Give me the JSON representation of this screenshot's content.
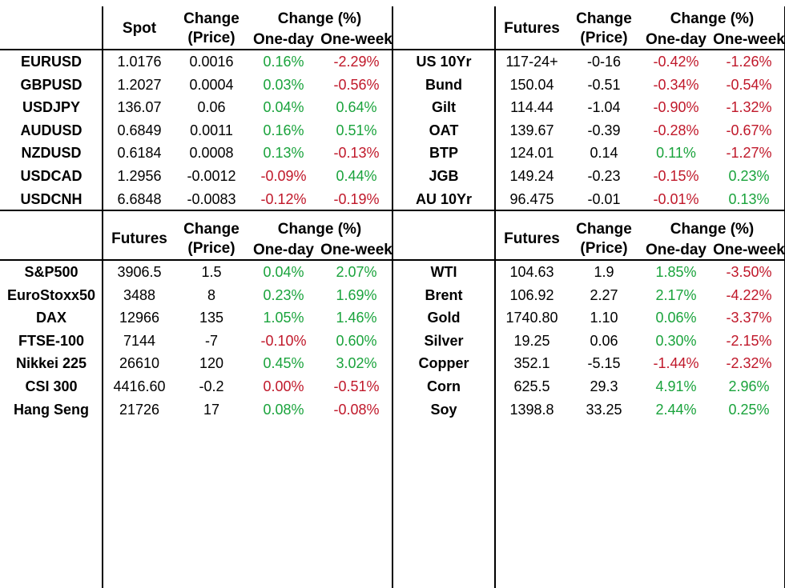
{
  "colors": {
    "positive": "#1aa33c",
    "negative": "#c0182a"
  },
  "top_left": {
    "header": {
      "first": "Spot",
      "change_price": [
        "Change",
        "(Price)"
      ],
      "change_pct": "Change (%)",
      "one_day": "One-day",
      "one_week": "One-week"
    },
    "rows": [
      {
        "label": "EURUSD",
        "value": "1.0176",
        "change": "0.0016",
        "day": "0.16%",
        "week": "-2.29%"
      },
      {
        "label": "GBPUSD",
        "value": "1.2027",
        "change": "0.0004",
        "day": "0.03%",
        "week": "-0.56%"
      },
      {
        "label": "USDJPY",
        "value": "136.07",
        "change": "0.06",
        "day": "0.04%",
        "week": "0.64%"
      },
      {
        "label": "AUDUSD",
        "value": "0.6849",
        "change": "0.0011",
        "day": "0.16%",
        "week": "0.51%"
      },
      {
        "label": "NZDUSD",
        "value": "0.6184",
        "change": "0.0008",
        "day": "0.13%",
        "week": "-0.13%"
      },
      {
        "label": "USDCAD",
        "value": "1.2956",
        "change": "-0.0012",
        "day": "-0.09%",
        "week": "0.44%"
      },
      {
        "label": "USDCNH",
        "value": "6.6848",
        "change": "-0.0083",
        "day": "-0.12%",
        "week": "-0.19%"
      }
    ]
  },
  "top_right": {
    "header": {
      "first": "Futures",
      "change_price": [
        "Change",
        "(Price)"
      ],
      "change_pct": "Change (%)",
      "one_day": "One-day",
      "one_week": "One-week"
    },
    "rows": [
      {
        "label": "US 10Yr",
        "value": "117-24+",
        "change": "-0-16",
        "day": "-0.42%",
        "week": "-1.26%"
      },
      {
        "label": "Bund",
        "value": "150.04",
        "change": "-0.51",
        "day": "-0.34%",
        "week": "-0.54%"
      },
      {
        "label": "Gilt",
        "value": "114.44",
        "change": "-1.04",
        "day": "-0.90%",
        "week": "-1.32%"
      },
      {
        "label": "OAT",
        "value": "139.67",
        "change": "-0.39",
        "day": "-0.28%",
        "week": "-0.67%"
      },
      {
        "label": "BTP",
        "value": "124.01",
        "change": "0.14",
        "day": "0.11%",
        "week": "-1.27%"
      },
      {
        "label": "JGB",
        "value": "149.24",
        "change": "-0.23",
        "day": "-0.15%",
        "week": "0.23%"
      },
      {
        "label": "AU 10Yr",
        "value": "96.475",
        "change": "-0.01",
        "day": "-0.01%",
        "week": "0.13%"
      }
    ]
  },
  "bottom_left": {
    "header": {
      "first": "Futures",
      "change_price": [
        "Change",
        "(Price)"
      ],
      "change_pct": "Change (%)",
      "one_day": "One-day",
      "one_week": "One-week"
    },
    "rows": [
      {
        "label": "S&P500",
        "value": "3906.5",
        "change": "1.5",
        "day": "0.04%",
        "week": "2.07%"
      },
      {
        "label": "EuroStoxx50",
        "value": "3488",
        "change": "8",
        "day": "0.23%",
        "week": "1.69%"
      },
      {
        "label": "DAX",
        "value": "12966",
        "change": "135",
        "day": "1.05%",
        "week": "1.46%"
      },
      {
        "label": "FTSE-100",
        "value": "7144",
        "change": "-7",
        "day": "-0.10%",
        "week": "0.60%"
      },
      {
        "label": "Nikkei 225",
        "value": "26610",
        "change": "120",
        "day": "0.45%",
        "week": "3.02%"
      },
      {
        "label": "CSI 300",
        "value": "4416.60",
        "change": "-0.2",
        "day": "0.00%",
        "week": "-0.51%"
      },
      {
        "label": "Hang Seng",
        "value": "21726",
        "change": "17",
        "day": "0.08%",
        "week": "-0.08%"
      }
    ]
  },
  "bottom_right": {
    "header": {
      "first": "Futures",
      "change_price": [
        "Change",
        "(Price)"
      ],
      "change_pct": "Change (%)",
      "one_day": "One-day",
      "one_week": "One-week"
    },
    "rows": [
      {
        "label": "WTI",
        "value": "104.63",
        "change": "1.9",
        "day": "1.85%",
        "week": "-3.50%"
      },
      {
        "label": "Brent",
        "value": "106.92",
        "change": "2.27",
        "day": "2.17%",
        "week": "-4.22%"
      },
      {
        "label": "Gold",
        "value": "1740.80",
        "change": "1.10",
        "day": "0.06%",
        "week": "-3.37%"
      },
      {
        "label": "Silver",
        "value": "19.25",
        "change": "0.06",
        "day": "0.30%",
        "week": "-2.15%"
      },
      {
        "label": "Copper",
        "value": "352.1",
        "change": "-5.15",
        "day": "-1.44%",
        "week": "-2.32%"
      },
      {
        "label": "Corn",
        "value": "625.5",
        "change": "29.3",
        "day": "4.91%",
        "week": "2.96%"
      },
      {
        "label": "Soy",
        "value": "1398.8",
        "change": "33.25",
        "day": "2.44%",
        "week": "0.25%"
      }
    ]
  }
}
